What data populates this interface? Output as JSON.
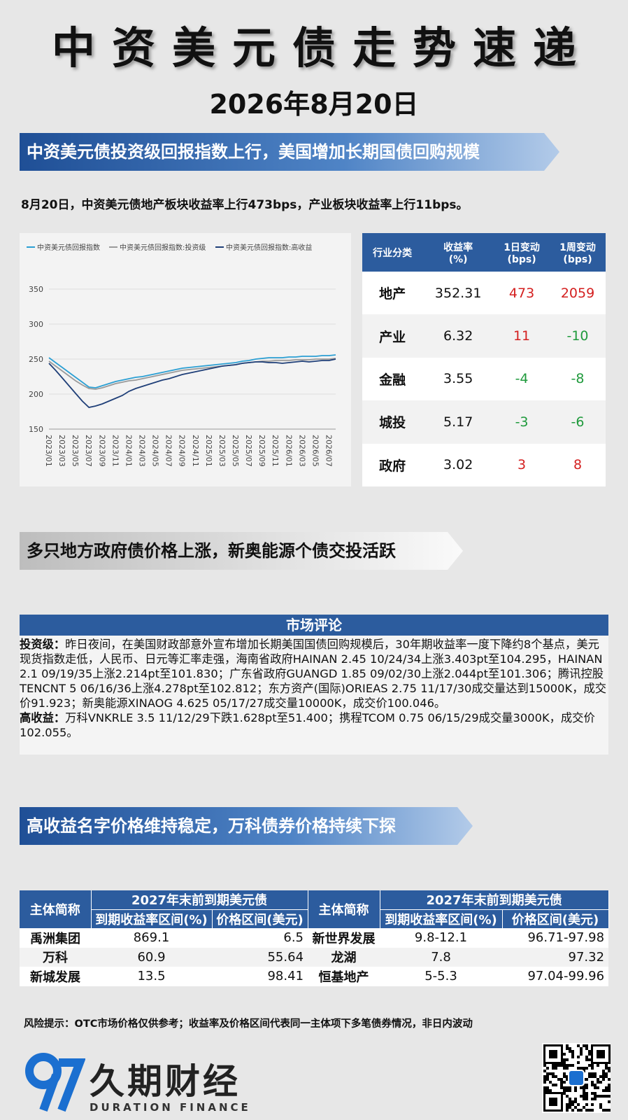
{
  "header": {
    "title": "中资美元债走势速递",
    "date": "2026年8月20日"
  },
  "section1": {
    "banner": "中资美元债投资级回报指数上行，美国增加长期国债回购规模",
    "summary": "8月20日，中资美元债地产板块收益率上行473bps，产业板块收益率上行11bps。"
  },
  "chart_data": {
    "type": "line",
    "categories": [
      "2023/01",
      null,
      "2023/03",
      null,
      "2023/05",
      null,
      "2023/07",
      null,
      "2023/09",
      null,
      "2023/11",
      null,
      "2024/01",
      null,
      "2024/03",
      null,
      "2024/05",
      null,
      "2024/07",
      null,
      "2024/09",
      null,
      "2024/11",
      null,
      "2025/01",
      null,
      "2025/03",
      null,
      "2025/05",
      null,
      "2025/07",
      null,
      "2025/09",
      null,
      "2025/11",
      null,
      "2026/01",
      null,
      "2026/03",
      null,
      "2026/05",
      null,
      "2026/07",
      null
    ],
    "series": [
      {
        "name": "中资美元债回报指数",
        "color": "#2b9fd3",
        "values": [
          252,
          245,
          238,
          231,
          224,
          217,
          210,
          209,
          212,
          215,
          218,
          220,
          222,
          224,
          225,
          227,
          229,
          231,
          233,
          235,
          237,
          238,
          239,
          240,
          241,
          242,
          243,
          244,
          245,
          247,
          248,
          250,
          251,
          252,
          252,
          252,
          253,
          253,
          254,
          254,
          254,
          255,
          255,
          256
        ]
      },
      {
        "name": "中资美元债回报指数:投资级",
        "color": "#9a9a9a",
        "values": [
          247,
          240,
          233,
          226,
          219,
          213,
          208,
          207,
          209,
          212,
          215,
          217,
          219,
          220,
          222,
          224,
          226,
          228,
          230,
          232,
          234,
          235,
          236,
          237,
          238,
          239,
          240,
          241,
          242,
          244,
          245,
          246,
          247,
          247,
          248,
          248,
          248,
          249,
          249,
          249,
          250,
          250,
          250,
          251
        ]
      },
      {
        "name": "中资美元债回报指数:高收益",
        "color": "#1f3f78",
        "values": [
          244,
          234,
          223,
          212,
          201,
          190,
          181,
          183,
          186,
          190,
          194,
          198,
          204,
          208,
          211,
          214,
          217,
          220,
          222,
          225,
          228,
          230,
          232,
          234,
          236,
          238,
          240,
          241,
          242,
          244,
          245,
          246,
          246,
          245,
          245,
          244,
          245,
          246,
          247,
          246,
          247,
          248,
          248,
          250
        ]
      }
    ],
    "ylim": [
      150,
      360
    ],
    "yticks": [
      150,
      200,
      250,
      300,
      350
    ],
    "grid": true
  },
  "sector_table": {
    "headers": [
      [
        "行业分类"
      ],
      [
        "收益率",
        "(%)"
      ],
      [
        "1日变动",
        "(bps)"
      ],
      [
        "1周变动",
        "(bps)"
      ]
    ],
    "rows": [
      [
        "地产",
        "352.31",
        "473",
        "2059"
      ],
      [
        "产业",
        "6.32",
        "11",
        "-10"
      ],
      [
        "金融",
        "3.55",
        "-4",
        "-8"
      ],
      [
        "城投",
        "5.17",
        "-3",
        "-6"
      ],
      [
        "政府",
        "3.02",
        "3",
        "8"
      ]
    ]
  },
  "section2": {
    "banner": "多只地方政府债价格上涨，新奥能源个债交投活跃"
  },
  "commentary": {
    "title": "市场评论",
    "paragraphs": [
      {
        "label": "投资级：",
        "text": "昨日夜间，在美国财政部意外宣布增加长期美国国债回购规模后，30年期收益率一度下降约8个基点，美元现货指数走低，人民币、日元等汇率走强，海南省政府HAINAN 2.45 10/24/34上涨3.403pt至104.295，HAINAN 2.1 09/19/35上涨2.214pt至101.830；广东省政府GUANGD 1.85 09/02/30上涨2.044pt至101.306；腾讯控股TENCNT 5 06/16/36上涨4.278pt至102.812；东方资产(国际)ORIEAS 2.75 11/17/30成交量达到15000K，成交价91.923；新奥能源XINAOG 4.625 05/17/27成交量10000K，成交价100.046。"
      },
      {
        "label": "高收益：",
        "text": "万科VNKRLE 3.5 11/12/29下跌1.628pt至51.400；携程TCOM 0.75 06/15/29成交量3000K，成交价102.055。"
      }
    ]
  },
  "section3": {
    "banner": "高收益名字价格维持稳定，万科债券价格持续下探"
  },
  "price_table": {
    "name_header": "主体简称",
    "group_header": "2027年末前到期美元债",
    "sub_headers": [
      "到期收益率区间(%)",
      "价格区间(美元)"
    ],
    "left_rows": [
      [
        "禹洲集团",
        "869.1",
        "6.5"
      ],
      [
        "万科",
        "60.9",
        "55.64"
      ],
      [
        "新城发展",
        "13.5",
        "98.41"
      ]
    ],
    "right_rows": [
      [
        "新世界发展",
        "9.8-12.1",
        "96.71-97.98"
      ],
      [
        "龙湖",
        "7.8",
        "97.32"
      ],
      [
        "恒基地产",
        "5-5.3",
        "97.04-99.96"
      ]
    ]
  },
  "footer": {
    "risk_note": "风险提示：OTC市场价格仅供参考；收益率及价格区间代表同一主体项下多笔债券情况，非日内波动",
    "brand": "久期财经",
    "brand_en": "DURATION FINANCE"
  }
}
